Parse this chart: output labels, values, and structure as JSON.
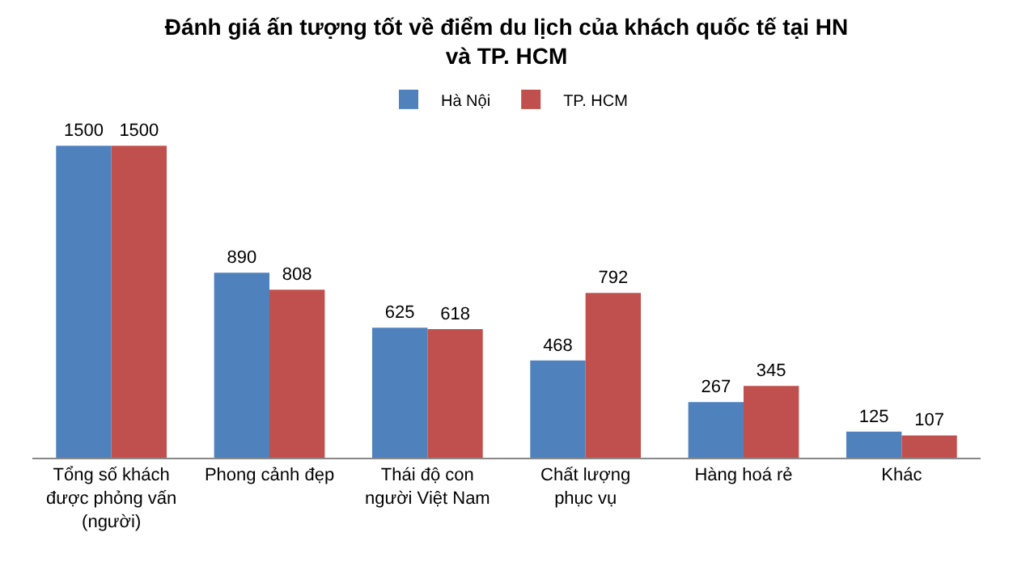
{
  "chart_data": {
    "type": "bar",
    "title": "Đánh giá ấn tượng tốt về điểm du lịch của khách quốc tế tại HN\nvà TP. HCM",
    "categories": [
      "Tổng số khách\nđược phỏng vấn\n(người)",
      "Phong cảnh đẹp",
      "Thái độ con\nngười Việt Nam",
      "Chất lượng\nphục vụ",
      "Hàng hoá rẻ",
      "Khác"
    ],
    "series": [
      {
        "name": "Hà Nội",
        "color": "#4f81bd",
        "values": [
          1500,
          890,
          625,
          468,
          267,
          125
        ]
      },
      {
        "name": "TP. HCM",
        "color": "#c0504d",
        "values": [
          1500,
          808,
          618,
          792,
          345,
          107
        ]
      }
    ],
    "data_labels": true,
    "legend": "top"
  }
}
